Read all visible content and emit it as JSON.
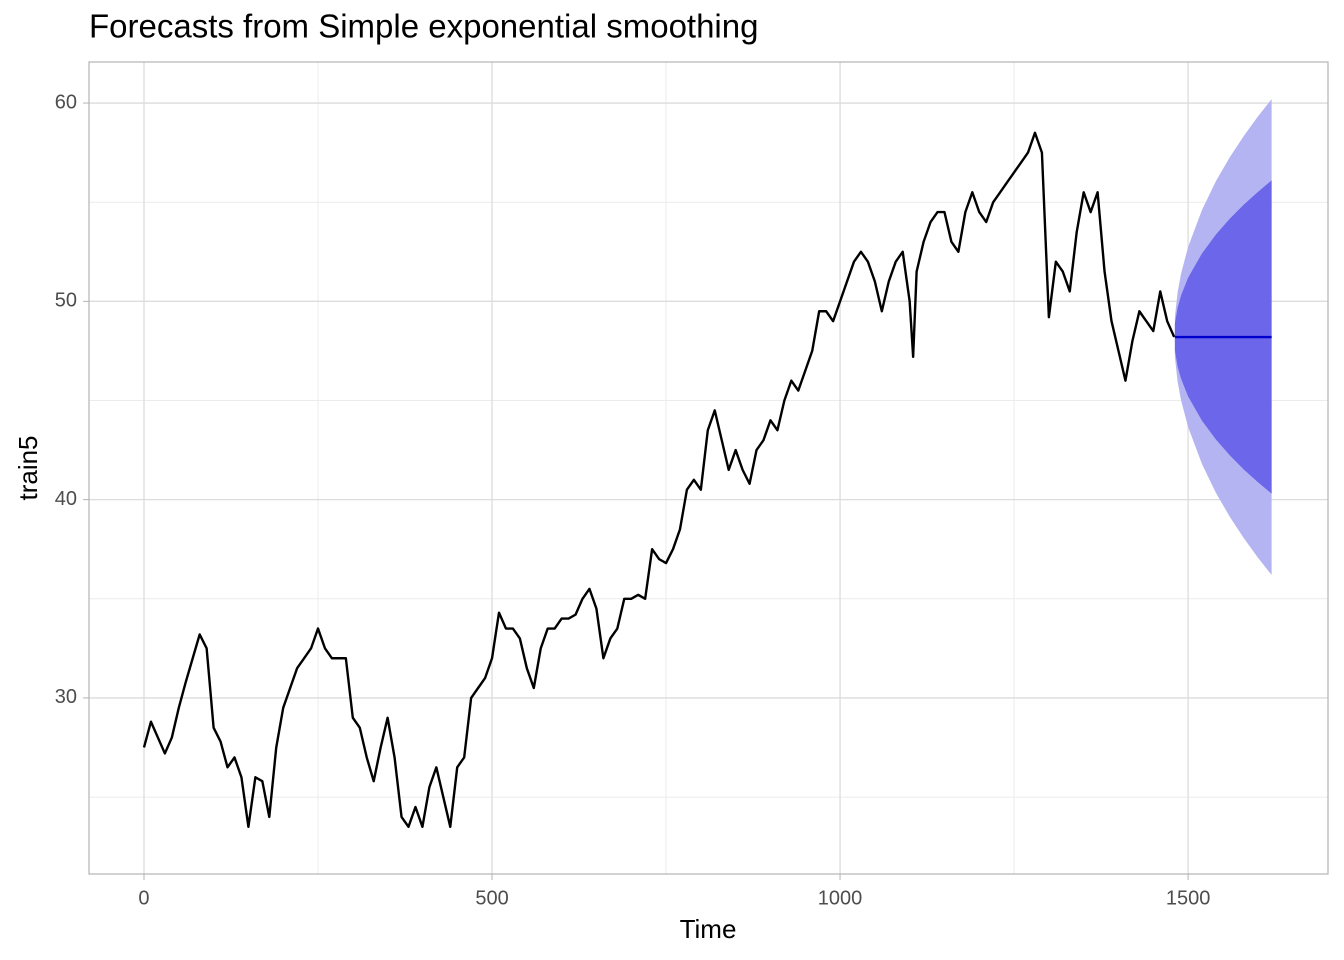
{
  "chart_data": {
    "type": "line",
    "title": "Forecasts from Simple exponential smoothing",
    "x_label": "Time",
    "y_label": "train5",
    "xlim": [
      -79,
      1701
    ],
    "ylim": [
      21.12,
      62.07
    ],
    "xticks": [
      0,
      500,
      1000,
      1500
    ],
    "yticks": [
      30,
      40,
      50,
      60
    ],
    "xminorticks": [
      250,
      750,
      1250
    ],
    "yminorticks": [
      25,
      35,
      45,
      55
    ],
    "grid": true,
    "color": "#000000",
    "x": [
      0,
      10,
      20,
      30,
      40,
      50,
      60,
      70,
      80,
      90,
      100,
      110,
      120,
      130,
      140,
      150,
      160,
      170,
      180,
      190,
      200,
      210,
      220,
      230,
      240,
      250,
      260,
      270,
      280,
      290,
      300,
      310,
      320,
      330,
      340,
      350,
      360,
      370,
      380,
      390,
      400,
      410,
      420,
      430,
      440,
      450,
      460,
      470,
      480,
      490,
      500,
      510,
      520,
      530,
      540,
      550,
      560,
      570,
      580,
      590,
      600,
      610,
      620,
      630,
      640,
      650,
      660,
      670,
      680,
      690,
      700,
      710,
      720,
      730,
      740,
      750,
      760,
      770,
      780,
      790,
      800,
      810,
      820,
      830,
      840,
      850,
      860,
      870,
      880,
      890,
      900,
      910,
      920,
      930,
      940,
      950,
      960,
      970,
      980,
      990,
      1000,
      1010,
      1020,
      1030,
      1040,
      1050,
      1060,
      1070,
      1080,
      1090,
      1100,
      1105,
      1110,
      1120,
      1130,
      1140,
      1150,
      1160,
      1170,
      1180,
      1190,
      1200,
      1210,
      1220,
      1230,
      1240,
      1250,
      1260,
      1270,
      1280,
      1290,
      1300,
      1310,
      1320,
      1330,
      1340,
      1350,
      1360,
      1370,
      1380,
      1390,
      1400,
      1410,
      1420,
      1430,
      1440,
      1450,
      1460,
      1470,
      1480
    ],
    "values": [
      27.5,
      28.8,
      28,
      27.2,
      28,
      29.5,
      30.8,
      32,
      33.2,
      32.5,
      28.5,
      27.8,
      26.5,
      27,
      26,
      23.5,
      26,
      25.8,
      24,
      27.5,
      29.5,
      30.5,
      31.5,
      32,
      32.5,
      33.5,
      32.5,
      32,
      32,
      32,
      29,
      28.5,
      27,
      25.8,
      27.5,
      29,
      27,
      24,
      23.5,
      24.5,
      23.5,
      25.5,
      26.5,
      25,
      23.5,
      26.5,
      27,
      30,
      30.5,
      31,
      32,
      34.3,
      33.5,
      33.5,
      33,
      31.5,
      30.5,
      32.5,
      33.5,
      33.5,
      34,
      34,
      34.2,
      35,
      35.5,
      34.5,
      32,
      33,
      33.5,
      35,
      35,
      35.2,
      35,
      37.5,
      37,
      36.8,
      37.5,
      38.5,
      40.5,
      41,
      40.5,
      43.5,
      44.5,
      43,
      41.5,
      42.5,
      41.5,
      40.8,
      42.5,
      43,
      44,
      43.5,
      45,
      46,
      45.5,
      46.5,
      47.5,
      49.5,
      49.5,
      49,
      50,
      51,
      52,
      52.5,
      52,
      51,
      49.5,
      51,
      52,
      52.5,
      50,
      47.2,
      51.5,
      53,
      54,
      54.5,
      54.5,
      53,
      52.5,
      54.5,
      55.5,
      54.5,
      54,
      55,
      55.5,
      56,
      56.5,
      57,
      57.5,
      58.5,
      57.5,
      49.2,
      52,
      51.5,
      50.5,
      53.5,
      55.5,
      54.5,
      55.5,
      51.5,
      49,
      47.5,
      46,
      48,
      49.5,
      49,
      48.5,
      50.5,
      49,
      48.2
    ],
    "forecast": {
      "color": "#0000cc",
      "band80_color": "#6b66ea",
      "band95_color": "#b5b4f2",
      "x": [
        1481,
        1485,
        1490,
        1500,
        1520,
        1540,
        1560,
        1580,
        1600,
        1620
      ],
      "values": [
        48.2,
        48.2,
        48.2,
        48.2,
        48.2,
        48.2,
        48.2,
        48.2,
        48.2,
        48.2
      ],
      "lower80": [
        47.53,
        46.71,
        46.09,
        45.21,
        43.98,
        43.03,
        42.23,
        41.52,
        40.89,
        40.3
      ],
      "upper80": [
        48.87,
        49.69,
        50.31,
        51.19,
        52.42,
        53.37,
        54.17,
        54.88,
        55.51,
        56.1
      ],
      "lower95": [
        47.19,
        45.93,
        44.99,
        43.66,
        41.79,
        40.34,
        39.13,
        38.06,
        37.09,
        36.2
      ],
      "upper95": [
        49.21,
        50.47,
        51.41,
        52.74,
        54.61,
        56.06,
        57.27,
        58.34,
        59.31,
        60.2
      ]
    }
  }
}
